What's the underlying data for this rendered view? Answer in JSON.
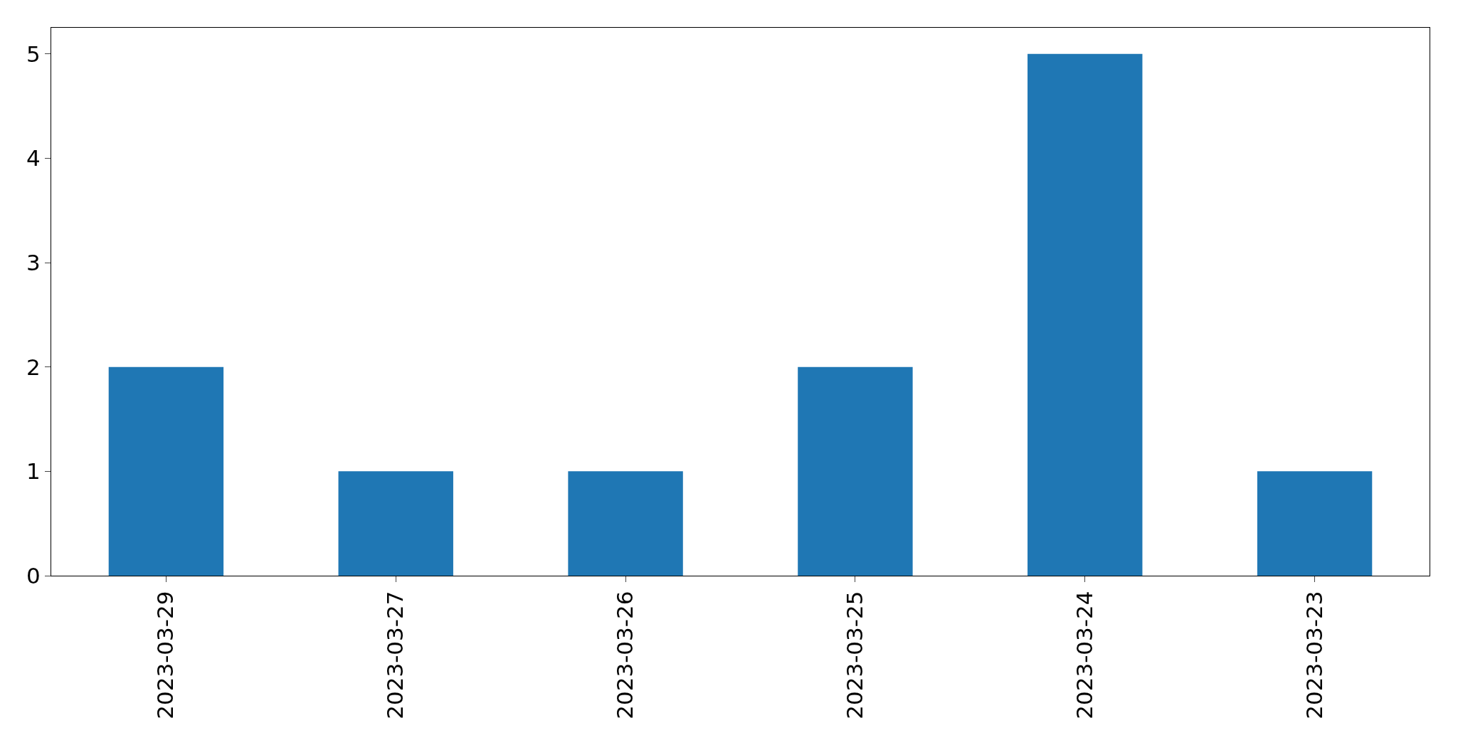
{
  "chart_data": {
    "type": "bar",
    "categories": [
      "2023-03-29",
      "2023-03-27",
      "2023-03-26",
      "2023-03-25",
      "2023-03-24",
      "2023-03-23"
    ],
    "values": [
      2,
      1,
      1,
      2,
      5,
      1
    ],
    "color": "#1f77b4",
    "ylim": [
      0,
      5.25
    ],
    "yticks": [
      0,
      1,
      2,
      3,
      4,
      5
    ],
    "grid": false
  }
}
